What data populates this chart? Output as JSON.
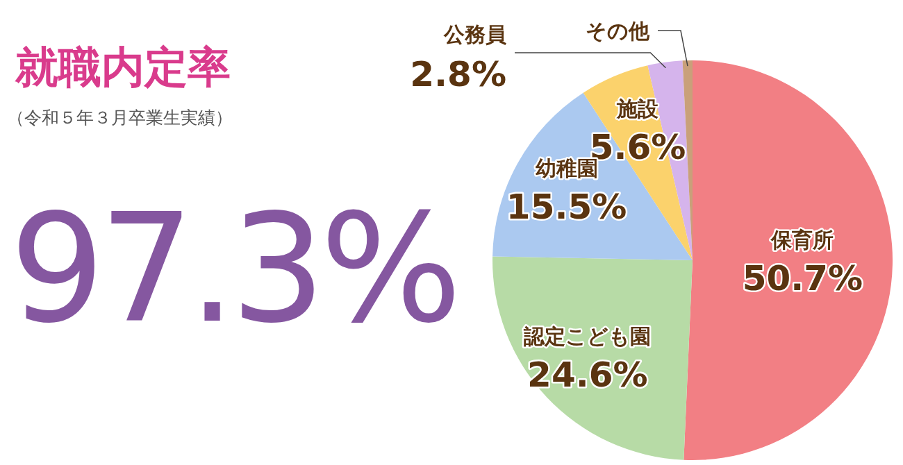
{
  "chart_data": [
    {
      "type": "other",
      "title": "就職内定率",
      "subtitle": "（令和５年３月卒業生実績）",
      "annotations": [
        "97.3%"
      ]
    },
    {
      "type": "pie",
      "categories": [
        "保育所",
        "認定こども園",
        "幼稚園",
        "施設",
        "公務員",
        "その他"
      ],
      "values": [
        50.7,
        24.6,
        15.5,
        5.6,
        2.8,
        0.8
      ],
      "colors": [
        "#f27f84",
        "#b7dba6",
        "#abc9f0",
        "#fbd26c",
        "#d5b4ec",
        "#c9a07a"
      ],
      "value_labels": [
        "50.7%",
        "24.6%",
        "15.5%",
        "5.6%",
        "2.8%",
        null
      ]
    }
  ]
}
